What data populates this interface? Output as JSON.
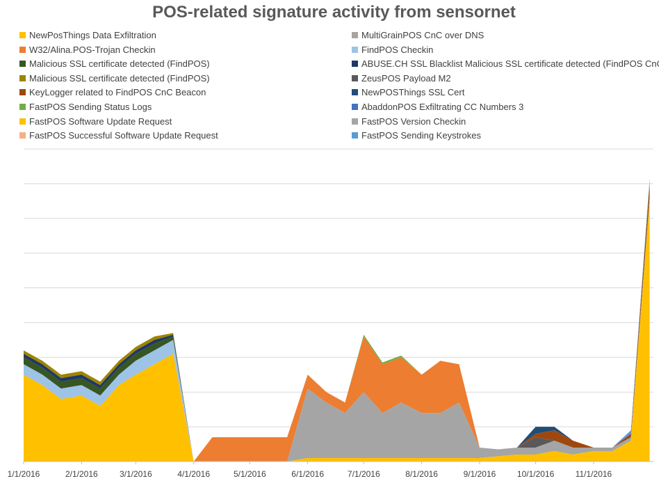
{
  "chart_data": {
    "type": "area",
    "stacked": true,
    "title": "POS-related signature activity from sensornet",
    "xlabel": "",
    "ylabel": "",
    "legend_position": "top",
    "grid": true,
    "y_tick_labels_visible": false,
    "ylim": [
      0,
      9
    ],
    "x_ticks": [
      "1/1/2016",
      "2/1/2016",
      "3/1/2016",
      "4/1/2016",
      "5/1/2016",
      "6/1/2016",
      "7/1/2016",
      "8/1/2016",
      "9/1/2016",
      "10/1/2016",
      "11/1/2016"
    ],
    "x": [
      "2016-01-01",
      "2016-01-11",
      "2016-01-21",
      "2016-02-01",
      "2016-02-11",
      "2016-02-21",
      "2016-03-01",
      "2016-03-11",
      "2016-03-21",
      "2016-04-01",
      "2016-04-11",
      "2016-04-21",
      "2016-05-01",
      "2016-05-11",
      "2016-05-21",
      "2016-06-01",
      "2016-06-11",
      "2016-06-21",
      "2016-07-01",
      "2016-07-11",
      "2016-07-21",
      "2016-08-01",
      "2016-08-11",
      "2016-08-21",
      "2016-09-01",
      "2016-09-11",
      "2016-09-21",
      "2016-10-01",
      "2016-10-11",
      "2016-10-21",
      "2016-11-01",
      "2016-11-11",
      "2016-11-21",
      "2016-12-01"
    ],
    "series": [
      {
        "name": "NewPosThings Data Exfiltration",
        "color": "#FFC000",
        "values": [
          2.5,
          2.2,
          1.8,
          1.9,
          1.6,
          2.2,
          2.5,
          2.8,
          3.1,
          0,
          0,
          0,
          0,
          0,
          0,
          0.1,
          0.1,
          0.1,
          0.1,
          0.1,
          0.1,
          0.1,
          0.1,
          0.1,
          0.1,
          0.15,
          0.2,
          0.2,
          0.3,
          0.2,
          0.3,
          0.3,
          0.6,
          7.5
        ]
      },
      {
        "name": "MultiGrainPOS CnC over DNS",
        "color": "#A5A5A5",
        "values": [
          0,
          0,
          0,
          0,
          0,
          0,
          0,
          0,
          0,
          0,
          0,
          0,
          0,
          0,
          0,
          2.0,
          1.6,
          1.3,
          1.9,
          1.3,
          1.6,
          1.3,
          1.3,
          1.6,
          0.3,
          0.2,
          0.2,
          0.2,
          0.3,
          0.2,
          0.1,
          0.1,
          0.1,
          0.1
        ]
      },
      {
        "name": "W32/Alina.POS-Trojan Checkin",
        "color": "#ED7D31",
        "values": [
          0,
          0,
          0,
          0,
          0,
          0,
          0,
          0,
          0,
          0,
          0.7,
          0.7,
          0.7,
          0.7,
          0.7,
          0.4,
          0.3,
          0.3,
          1.6,
          1.4,
          1.3,
          1.1,
          1.5,
          1.1,
          0,
          0,
          0,
          0,
          0,
          0,
          0,
          0,
          0,
          0
        ]
      },
      {
        "name": "FindPOS Checkin",
        "color": "#9DC3E6",
        "values": [
          0.3,
          0.3,
          0.3,
          0.3,
          0.3,
          0.3,
          0.4,
          0.4,
          0.4,
          0,
          0,
          0,
          0,
          0,
          0,
          0,
          0,
          0,
          0,
          0,
          0,
          0,
          0,
          0,
          0,
          0,
          0,
          0,
          0,
          0,
          0,
          0,
          0,
          0
        ]
      },
      {
        "name": "Malicious SSL certificate detected (FindPOS)",
        "color": "#375623",
        "values": [
          0.2,
          0.2,
          0.2,
          0.2,
          0.2,
          0.2,
          0.2,
          0.2,
          0.1,
          0,
          0,
          0,
          0,
          0,
          0,
          0,
          0,
          0,
          0,
          0,
          0,
          0,
          0,
          0,
          0,
          0,
          0,
          0,
          0,
          0,
          0,
          0,
          0,
          0
        ]
      },
      {
        "name": "ABUSE.CH SSL Blacklist Malicious SSL certificate detected (FindPOS CnC)",
        "color": "#203864",
        "values": [
          0.1,
          0.1,
          0.1,
          0.1,
          0.1,
          0.1,
          0.1,
          0.1,
          0.05,
          0,
          0,
          0,
          0,
          0,
          0,
          0,
          0,
          0,
          0,
          0,
          0,
          0,
          0,
          0,
          0,
          0,
          0,
          0,
          0,
          0,
          0,
          0,
          0,
          0
        ]
      },
      {
        "name": "Malicious SSL certificate detected (FindPOS)",
        "color": "#9C8500",
        "values": [
          0.1,
          0.1,
          0.1,
          0.1,
          0.1,
          0.1,
          0.1,
          0.1,
          0.05,
          0,
          0,
          0,
          0,
          0,
          0,
          0,
          0,
          0,
          0,
          0,
          0,
          0,
          0,
          0,
          0,
          0,
          0,
          0,
          0,
          0,
          0,
          0,
          0,
          0
        ]
      },
      {
        "name": "ZeusPOS Payload M2",
        "color": "#595959",
        "values": [
          0,
          0,
          0,
          0,
          0,
          0,
          0,
          0,
          0,
          0,
          0,
          0,
          0,
          0,
          0,
          0,
          0,
          0,
          0,
          0,
          0,
          0,
          0,
          0,
          0,
          0,
          0,
          0.3,
          0,
          0,
          0,
          0,
          0,
          0
        ]
      },
      {
        "name": "KeyLogger related to FindPOS CnC Beacon",
        "color": "#9E480E",
        "values": [
          0,
          0,
          0,
          0,
          0,
          0,
          0,
          0,
          0,
          0,
          0,
          0,
          0,
          0,
          0,
          0,
          0,
          0,
          0,
          0,
          0,
          0,
          0,
          0,
          0,
          0,
          0,
          0.1,
          0.3,
          0.2,
          0,
          0,
          0.1,
          0.4
        ]
      },
      {
        "name": "NewPOSThings SSL Cert",
        "color": "#1F4E79",
        "values": [
          0,
          0,
          0,
          0,
          0,
          0,
          0,
          0,
          0,
          0,
          0,
          0,
          0,
          0,
          0,
          0,
          0,
          0,
          0,
          0,
          0,
          0,
          0,
          0,
          0,
          0,
          0,
          0.2,
          0.1,
          0,
          0,
          0,
          0,
          0
        ]
      },
      {
        "name": "FastPOS Sending Status Logs",
        "color": "#70AD47",
        "values": [
          0,
          0,
          0,
          0,
          0,
          0,
          0,
          0,
          0,
          0,
          0,
          0,
          0,
          0,
          0,
          0,
          0,
          0,
          0.05,
          0.05,
          0.05,
          0,
          0,
          0,
          0,
          0,
          0,
          0,
          0,
          0,
          0,
          0,
          0,
          0.05
        ]
      },
      {
        "name": "AbaddonPOS Exfiltrating CC Numbers 3",
        "color": "#4472C4",
        "values": [
          0,
          0,
          0,
          0,
          0,
          0,
          0,
          0,
          0,
          0,
          0,
          0,
          0,
          0,
          0,
          0,
          0,
          0,
          0,
          0,
          0,
          0,
          0,
          0,
          0,
          0,
          0,
          0,
          0,
          0,
          0,
          0,
          0,
          0
        ]
      },
      {
        "name": "FastPOS Software Update Request",
        "color": "#FFC000",
        "values": [
          0,
          0,
          0,
          0,
          0,
          0,
          0,
          0,
          0,
          0,
          0,
          0,
          0,
          0,
          0,
          0,
          0,
          0,
          0,
          0,
          0,
          0,
          0,
          0,
          0,
          0,
          0,
          0,
          0,
          0,
          0,
          0,
          0,
          0
        ]
      },
      {
        "name": "FastPOS Version Checkin",
        "color": "#A5A5A5",
        "values": [
          0,
          0,
          0,
          0,
          0,
          0,
          0,
          0,
          0,
          0,
          0,
          0,
          0,
          0,
          0,
          0,
          0,
          0,
          0,
          0,
          0,
          0,
          0,
          0,
          0,
          0,
          0,
          0,
          0,
          0,
          0,
          0,
          0,
          0
        ]
      },
      {
        "name": "FastPOS Successful Software Update Request",
        "color": "#F4B183",
        "values": [
          0,
          0,
          0,
          0,
          0,
          0,
          0,
          0,
          0,
          0,
          0,
          0,
          0,
          0,
          0,
          0,
          0,
          0,
          0,
          0,
          0,
          0,
          0,
          0,
          0,
          0,
          0,
          0,
          0,
          0,
          0,
          0,
          0,
          0
        ]
      },
      {
        "name": "FastPOS Sending Keystrokes",
        "color": "#5B9BD5",
        "values": [
          0,
          0,
          0,
          0,
          0,
          0,
          0,
          0,
          0,
          0,
          0,
          0,
          0,
          0,
          0,
          0,
          0,
          0,
          0,
          0,
          0,
          0,
          0,
          0,
          0,
          0,
          0,
          0,
          0,
          0,
          0,
          0,
          0.1,
          0.1
        ]
      }
    ]
  }
}
